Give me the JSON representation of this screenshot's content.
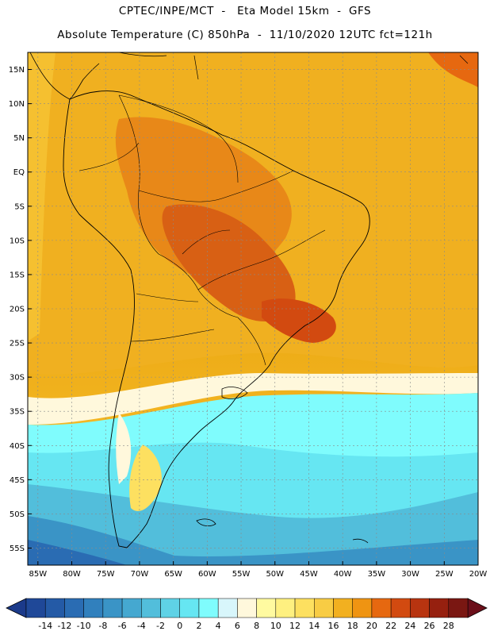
{
  "header": {
    "line1": "CPTEC/INPE/MCT  -   Eta Model 15km  -  GFS",
    "line2": "Absolute Temperature (C) 850hPa  -  11/10/2020 12UTC fct=121h"
  },
  "map": {
    "lat_labels": [
      "15N",
      "10N",
      "5N",
      "EQ",
      "5S",
      "10S",
      "15S",
      "20S",
      "25S",
      "30S",
      "35S",
      "40S",
      "45S",
      "50S",
      "55S"
    ],
    "lon_labels": [
      "85W",
      "80W",
      "75W",
      "70W",
      "65W",
      "60W",
      "55W",
      "50W",
      "45W",
      "40W",
      "35W",
      "30W",
      "25W",
      "20W"
    ],
    "lat_range": [
      17.5,
      -57.5
    ],
    "lon_range": [
      -86.5,
      -20
    ]
  },
  "colorbar": {
    "labels": [
      "-14",
      "-12",
      "-10",
      "-8",
      "-6",
      "-4",
      "-2",
      "0",
      "2",
      "4",
      "6",
      "8",
      "10",
      "12",
      "14",
      "16",
      "18",
      "20",
      "22",
      "24",
      "26",
      "28"
    ],
    "under_color": "#1b3a8a",
    "over_color": "#6b0f1a",
    "colors": [
      "#1f4898",
      "#245aa6",
      "#2a6cb3",
      "#3180bd",
      "#3a94c6",
      "#45a8d0",
      "#52bedb",
      "#5fd2e6",
      "#66e6f2",
      "#7ffcfd",
      "#d8f6fb",
      "#fff8dc",
      "#fffaa0",
      "#fef080",
      "#fde060",
      "#f8cc44",
      "#f2b020",
      "#ef9412",
      "#e66810",
      "#d24a10",
      "#b83410",
      "#96200f",
      "#7a1712"
    ]
  }
}
